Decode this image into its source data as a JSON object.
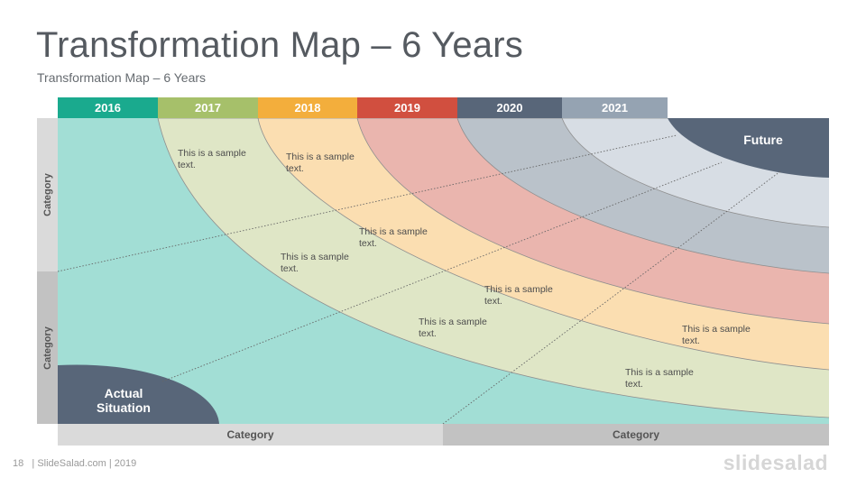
{
  "slide": {
    "title": "Transformation Map – 6 Years",
    "subtitle": "Transformation Map – 6 Years"
  },
  "years": [
    {
      "label": "2016",
      "color": "#1aaa8e"
    },
    {
      "label": "2017",
      "color": "#a6c06a"
    },
    {
      "label": "2018",
      "color": "#f3ae3c"
    },
    {
      "label": "2019",
      "color": "#d14f3f"
    },
    {
      "label": "2020",
      "color": "#586679"
    },
    {
      "label": "2021",
      "color": "#95a3b2"
    }
  ],
  "bands": {
    "actual_color": "#a2ded5",
    "year_colors": [
      "#dfe6c6",
      "#fbdeb1",
      "#eab5ae",
      "#bac2ca",
      "#d7dde4"
    ],
    "future_color": "#586679",
    "actual_node_color": "#586679"
  },
  "side_categories": [
    "Category",
    "Category"
  ],
  "bottom_categories": [
    "Category",
    "Category"
  ],
  "nodes": {
    "actual": "Actual Situation",
    "actual_line1": "Actual",
    "actual_line2": "Situation",
    "future": "Future"
  },
  "sample_texts": [
    {
      "line1": "This is a sample",
      "line2": "text."
    },
    {
      "line1": "This is a sample",
      "line2": "text."
    },
    {
      "line1": "This is a sample",
      "line2": "text."
    },
    {
      "line1": "This is a sample",
      "line2": "text."
    },
    {
      "line1": "This is a sample",
      "line2": "text."
    },
    {
      "line1": "This is a sample",
      "line2": "text."
    },
    {
      "line1": "This is a sample",
      "line2": "text."
    },
    {
      "line1": "This is a sample",
      "line2": "text."
    }
  ],
  "footer": {
    "page_number": "18",
    "text": "| SlideSalad.com | 2019",
    "brand": "slidesalad"
  }
}
